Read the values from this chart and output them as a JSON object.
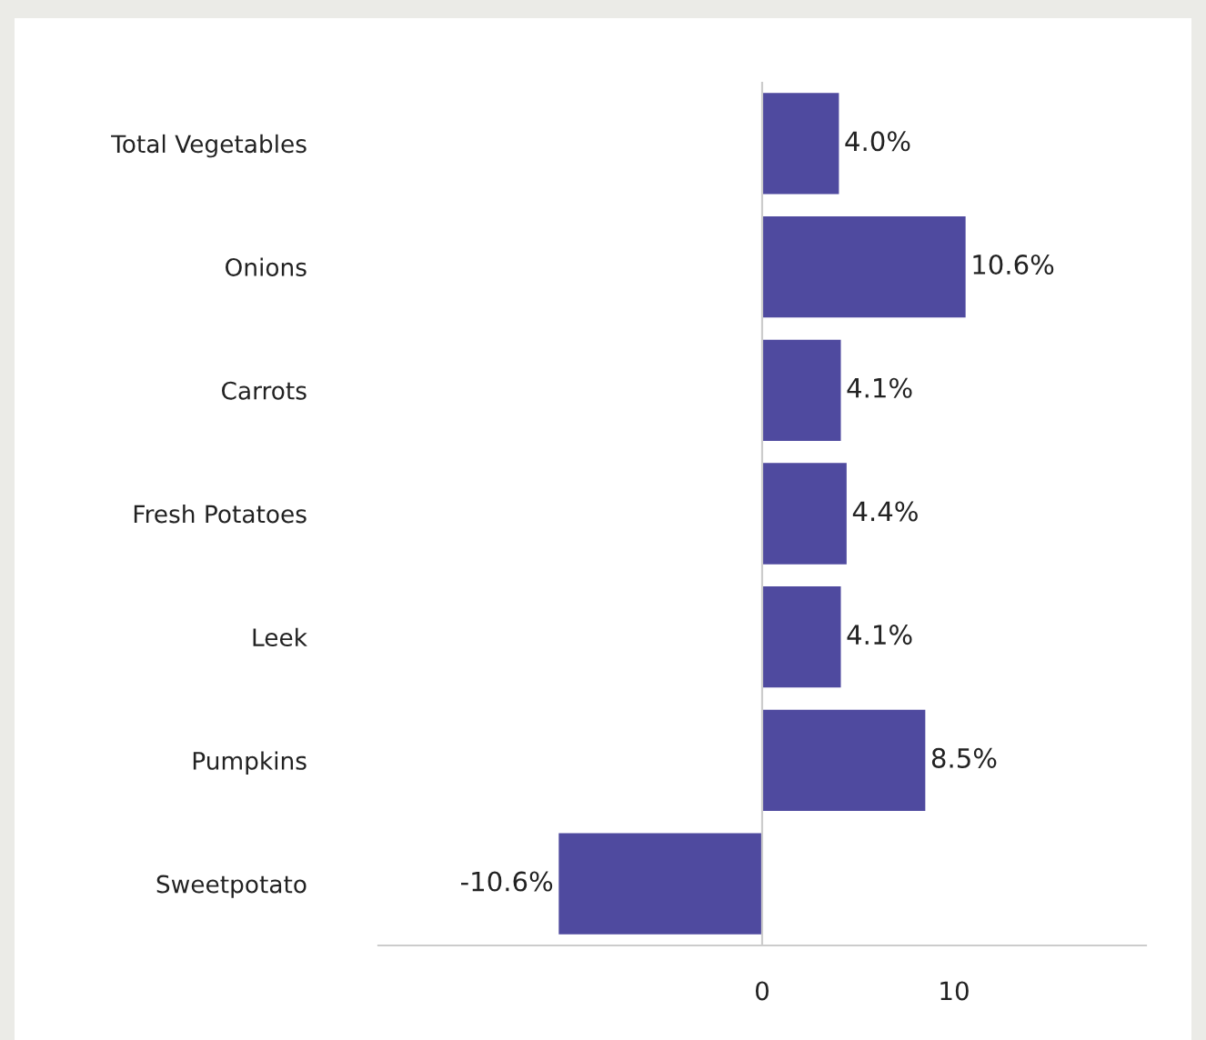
{
  "chart_data": {
    "type": "bar",
    "orientation": "horizontal",
    "categories": [
      "Total Vegetables",
      "Onions",
      "Carrots",
      "Fresh Potatoes",
      "Leek",
      "Pumpkins",
      "Sweetpotato"
    ],
    "values": [
      4.0,
      10.6,
      4.1,
      4.4,
      4.1,
      8.5,
      -10.6
    ],
    "value_labels": [
      "4.0%",
      "10.6%",
      "4.1%",
      "4.4%",
      "4.1%",
      "8.5%",
      "-10.6%"
    ],
    "color": "#4f4a9f",
    "xlim": [
      -20,
      20
    ],
    "xticks": [
      0,
      10
    ],
    "grid": false,
    "legend": false,
    "ref_lines": [
      {
        "axis": "x",
        "value": 0,
        "color": "#cccccc"
      }
    ]
  }
}
